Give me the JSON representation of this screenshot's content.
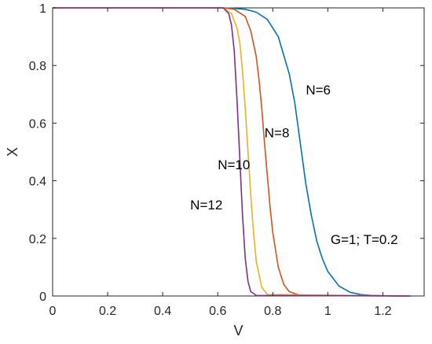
{
  "chart_data": {
    "type": "line",
    "xlabel": "V",
    "ylabel": "X",
    "xlim": [
      0,
      1.35
    ],
    "ylim": [
      0,
      1
    ],
    "xticks": [
      "0",
      "0.2",
      "0.4",
      "0.6",
      "0.8",
      "1",
      "1.2"
    ],
    "yticks": [
      "0",
      "0.2",
      "0.4",
      "0.6",
      "0.8",
      "1"
    ],
    "grid": false,
    "series": [
      {
        "name": "N=6",
        "color": "#0072BD",
        "x": [
          0.0,
          0.62,
          0.66,
          0.7,
          0.74,
          0.78,
          0.82,
          0.86,
          0.88,
          0.9,
          0.92,
          0.94,
          0.96,
          0.98,
          1.0,
          1.04,
          1.08,
          1.12,
          1.16,
          1.2,
          1.25,
          1.3
        ],
        "y": [
          1.0,
          1.0,
          0.998,
          0.995,
          0.985,
          0.96,
          0.9,
          0.77,
          0.67,
          0.53,
          0.39,
          0.28,
          0.19,
          0.13,
          0.085,
          0.035,
          0.013,
          0.005,
          0.002,
          0.001,
          0.0,
          0.0
        ]
      },
      {
        "name": "N=8",
        "color": "#D95319",
        "x": [
          0.0,
          0.62,
          0.66,
          0.7,
          0.72,
          0.74,
          0.75,
          0.76,
          0.77,
          0.78,
          0.79,
          0.8,
          0.82,
          0.84,
          0.86,
          0.9,
          1.3
        ],
        "y": [
          1.0,
          1.0,
          0.995,
          0.97,
          0.92,
          0.83,
          0.75,
          0.65,
          0.53,
          0.42,
          0.31,
          0.22,
          0.1,
          0.04,
          0.015,
          0.002,
          0.0
        ]
      },
      {
        "name": "N=10",
        "color": "#EDB120",
        "x": [
          0.0,
          0.62,
          0.65,
          0.67,
          0.68,
          0.69,
          0.7,
          0.71,
          0.72,
          0.73,
          0.74,
          0.76,
          0.78,
          1.3
        ],
        "y": [
          1.0,
          1.0,
          0.98,
          0.93,
          0.88,
          0.78,
          0.65,
          0.5,
          0.35,
          0.22,
          0.12,
          0.03,
          0.005,
          0.0
        ]
      },
      {
        "name": "N=12",
        "color": "#7E2F8E",
        "x": [
          0.0,
          0.62,
          0.64,
          0.65,
          0.66,
          0.67,
          0.68,
          0.69,
          0.7,
          0.71,
          0.72,
          0.74,
          1.3
        ],
        "y": [
          1.0,
          1.0,
          0.98,
          0.94,
          0.85,
          0.68,
          0.48,
          0.28,
          0.13,
          0.05,
          0.015,
          0.002,
          0.0
        ]
      }
    ],
    "annotations": [
      {
        "text": "N=6",
        "x": 0.92,
        "y": 0.7
      },
      {
        "text": "N=8",
        "x": 0.77,
        "y": 0.55
      },
      {
        "text": "N=10",
        "x": 0.6,
        "y": 0.44
      },
      {
        "text": "N=12",
        "x": 0.5,
        "y": 0.3
      },
      {
        "text": "G=1; T=0.2",
        "x": 1.01,
        "y": 0.18
      }
    ]
  }
}
